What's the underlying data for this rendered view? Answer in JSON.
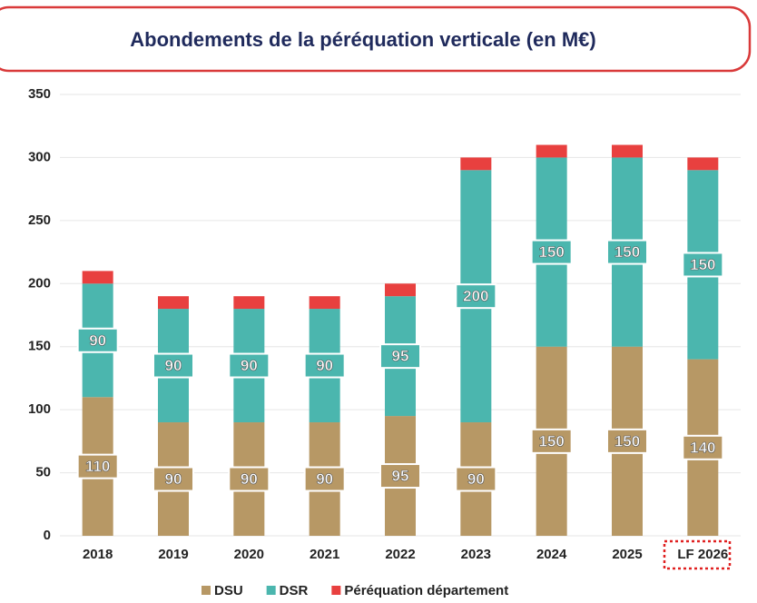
{
  "chart_data": {
    "type": "bar",
    "stacked": true,
    "title": "Abondements de la péréquation verticale (en M€)",
    "categories": [
      "2018",
      "2019",
      "2020",
      "2021",
      "2022",
      "2023",
      "2024",
      "2025",
      "LF 2026"
    ],
    "series": [
      {
        "name": "DSU",
        "color": "#b79865",
        "values": [
          110,
          90,
          90,
          90,
          95,
          90,
          150,
          150,
          140
        ]
      },
      {
        "name": "DSR",
        "color": "#4bb6ae",
        "values": [
          90,
          90,
          90,
          90,
          95,
          200,
          150,
          150,
          150
        ]
      },
      {
        "name": "Péréquation département",
        "color": "#e8403f",
        "values": [
          10,
          10,
          10,
          10,
          10,
          10,
          10,
          10,
          10
        ]
      }
    ],
    "ylim": [
      0,
      350
    ],
    "yticks": [
      0,
      50,
      100,
      150,
      200,
      250,
      300,
      350
    ],
    "grid": true
  }
}
